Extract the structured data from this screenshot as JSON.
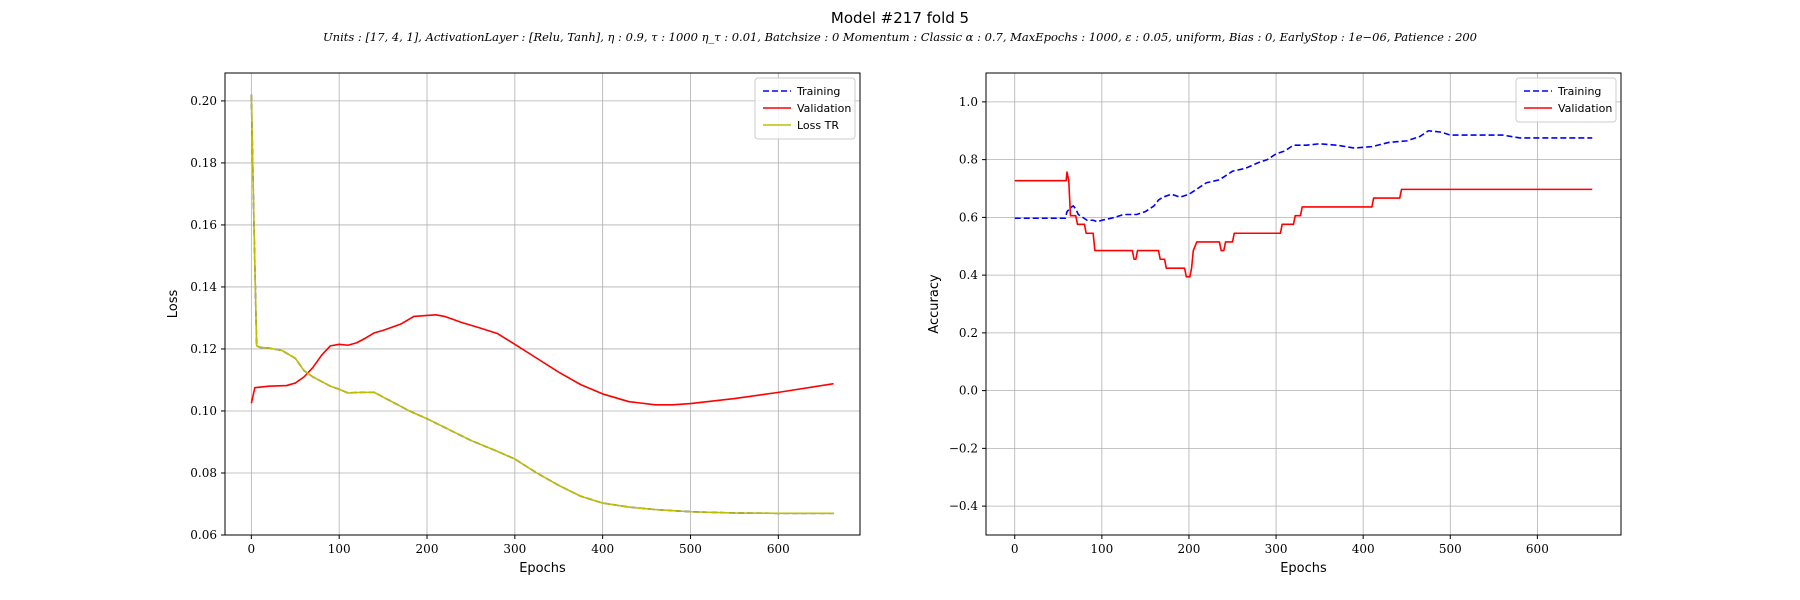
{
  "figure": {
    "title": "Model #217 fold 5",
    "subtitle": "Units : [17, 4, 1], ActivationLayer : [Relu, Tanh], η : 0.9, τ : 1000 η_τ : 0.01, Batchsize : 0 Momentum : Classic α : 0.7, MaxEpochs : 1000, ε : 0.05, uniform, Bias : 0, EarlyStop : 1e−06, Patience : 200"
  },
  "chart_data": [
    {
      "type": "line",
      "xlabel": "Epochs",
      "ylabel": "Loss",
      "xlim": [
        -30,
        693
      ],
      "ylim": [
        0.06,
        0.209
      ],
      "xticks": [
        0,
        100,
        200,
        300,
        400,
        500,
        600
      ],
      "yticks": [
        0.06,
        0.08,
        0.1,
        0.12,
        0.14,
        0.16,
        0.18,
        0.2
      ],
      "ytick_labels": [
        "0.06",
        "0.08",
        "0.10",
        "0.12",
        "0.14",
        "0.16",
        "0.18",
        "0.20"
      ],
      "grid": true,
      "legend": "top-right",
      "series": [
        {
          "name": "Training",
          "color": "#0000ff",
          "dash": "dashed",
          "points": [
            [
              0,
              0.202
            ],
            [
              3,
              0.16
            ],
            [
              6,
              0.121
            ],
            [
              10,
              0.1205
            ],
            [
              20,
              0.1203
            ],
            [
              35,
              0.1195
            ],
            [
              50,
              0.117
            ],
            [
              60,
              0.113
            ],
            [
              70,
              0.111
            ],
            [
              80,
              0.1095
            ],
            [
              90,
              0.108
            ],
            [
              100,
              0.107
            ],
            [
              110,
              0.1058
            ],
            [
              125,
              0.106
            ],
            [
              140,
              0.106
            ],
            [
              160,
              0.103
            ],
            [
              180,
              0.1
            ],
            [
              200,
              0.0975
            ],
            [
              225,
              0.094
            ],
            [
              250,
              0.0905
            ],
            [
              280,
              0.087
            ],
            [
              300,
              0.0845
            ],
            [
              325,
              0.08
            ],
            [
              350,
              0.076
            ],
            [
              375,
              0.0725
            ],
            [
              400,
              0.0703
            ],
            [
              430,
              0.069
            ],
            [
              460,
              0.0682
            ],
            [
              500,
              0.0675
            ],
            [
              550,
              0.0671
            ],
            [
              600,
              0.067
            ],
            [
              663,
              0.067
            ]
          ]
        },
        {
          "name": "Validation",
          "color": "#ff0000",
          "dash": "solid",
          "points": [
            [
              0,
              0.1025
            ],
            [
              4,
              0.1075
            ],
            [
              20,
              0.108
            ],
            [
              40,
              0.1082
            ],
            [
              50,
              0.109
            ],
            [
              60,
              0.111
            ],
            [
              70,
              0.114
            ],
            [
              80,
              0.118
            ],
            [
              90,
              0.121
            ],
            [
              100,
              0.1215
            ],
            [
              110,
              0.1212
            ],
            [
              120,
              0.122
            ],
            [
              130,
              0.1235
            ],
            [
              140,
              0.1252
            ],
            [
              150,
              0.126
            ],
            [
              170,
              0.128
            ],
            [
              185,
              0.1305
            ],
            [
              200,
              0.1308
            ],
            [
              210,
              0.131
            ],
            [
              220,
              0.1305
            ],
            [
              240,
              0.1285
            ],
            [
              260,
              0.1268
            ],
            [
              280,
              0.125
            ],
            [
              300,
              0.1215
            ],
            [
              325,
              0.117
            ],
            [
              350,
              0.1125
            ],
            [
              375,
              0.1085
            ],
            [
              400,
              0.1055
            ],
            [
              430,
              0.103
            ],
            [
              460,
              0.102
            ],
            [
              480,
              0.102
            ],
            [
              500,
              0.1024
            ],
            [
              550,
              0.104
            ],
            [
              600,
              0.106
            ],
            [
              663,
              0.1088
            ]
          ]
        },
        {
          "name": "Loss TR",
          "color": "#bfbf00",
          "dash": "solid",
          "points": [
            [
              0,
              0.202
            ],
            [
              3,
              0.16
            ],
            [
              6,
              0.121
            ],
            [
              10,
              0.1205
            ],
            [
              20,
              0.1203
            ],
            [
              35,
              0.1195
            ],
            [
              50,
              0.117
            ],
            [
              60,
              0.113
            ],
            [
              70,
              0.111
            ],
            [
              80,
              0.1095
            ],
            [
              90,
              0.108
            ],
            [
              100,
              0.107
            ],
            [
              110,
              0.1058
            ],
            [
              125,
              0.106
            ],
            [
              140,
              0.106
            ],
            [
              160,
              0.103
            ],
            [
              180,
              0.1
            ],
            [
              200,
              0.0975
            ],
            [
              225,
              0.094
            ],
            [
              250,
              0.0905
            ],
            [
              280,
              0.087
            ],
            [
              300,
              0.0845
            ],
            [
              325,
              0.08
            ],
            [
              350,
              0.076
            ],
            [
              375,
              0.0725
            ],
            [
              400,
              0.0703
            ],
            [
              430,
              0.069
            ],
            [
              460,
              0.0682
            ],
            [
              500,
              0.0675
            ],
            [
              550,
              0.0671
            ],
            [
              600,
              0.067
            ],
            [
              663,
              0.067
            ]
          ]
        }
      ]
    },
    {
      "type": "line",
      "xlabel": "Epochs",
      "ylabel": "Accuracy",
      "xlim": [
        -33,
        696
      ],
      "ylim": [
        -0.5,
        1.1
      ],
      "xticks": [
        0,
        100,
        200,
        300,
        400,
        500,
        600
      ],
      "yticks": [
        -0.4,
        -0.2,
        0.0,
        0.2,
        0.4,
        0.6,
        0.8,
        1.0
      ],
      "ytick_labels": [
        "−0.4",
        "−0.2",
        "0.0",
        "0.2",
        "0.4",
        "0.6",
        "0.8",
        "1.0"
      ],
      "grid": true,
      "legend": "top-right",
      "series": [
        {
          "name": "Training",
          "color": "#0000ff",
          "dash": "dashed",
          "points": [
            [
              0,
              0.597
            ],
            [
              58,
              0.597
            ],
            [
              60,
              0.62
            ],
            [
              63,
              0.63
            ],
            [
              67,
              0.64
            ],
            [
              70,
              0.63
            ],
            [
              73,
              0.61
            ],
            [
              78,
              0.6
            ],
            [
              83,
              0.59
            ],
            [
              90,
              0.59
            ],
            [
              95,
              0.585
            ],
            [
              100,
              0.59
            ],
            [
              115,
              0.6
            ],
            [
              125,
              0.61
            ],
            [
              140,
              0.61
            ],
            [
              150,
              0.62
            ],
            [
              160,
              0.64
            ],
            [
              165,
              0.66
            ],
            [
              170,
              0.67
            ],
            [
              180,
              0.68
            ],
            [
              190,
              0.67
            ],
            [
              200,
              0.68
            ],
            [
              210,
              0.7
            ],
            [
              220,
              0.72
            ],
            [
              235,
              0.73
            ],
            [
              250,
              0.76
            ],
            [
              265,
              0.77
            ],
            [
              280,
              0.79
            ],
            [
              290,
              0.8
            ],
            [
              300,
              0.82
            ],
            [
              310,
              0.83
            ],
            [
              320,
              0.85
            ],
            [
              335,
              0.85
            ],
            [
              350,
              0.855
            ],
            [
              370,
              0.85
            ],
            [
              390,
              0.84
            ],
            [
              410,
              0.845
            ],
            [
              430,
              0.86
            ],
            [
              450,
              0.865
            ],
            [
              465,
              0.88
            ],
            [
              475,
              0.9
            ],
            [
              490,
              0.895
            ],
            [
              500,
              0.885
            ],
            [
              560,
              0.885
            ],
            [
              580,
              0.875
            ],
            [
              663,
              0.875
            ]
          ]
        },
        {
          "name": "Validation",
          "color": "#ff0000",
          "dash": "solid",
          "points": [
            [
              0,
              0.727
            ],
            [
              59,
              0.727
            ],
            [
              60,
              0.757
            ],
            [
              62,
              0.727
            ],
            [
              64,
              0.606
            ],
            [
              70,
              0.606
            ],
            [
              72,
              0.576
            ],
            [
              80,
              0.576
            ],
            [
              82,
              0.545
            ],
            [
              90,
              0.545
            ],
            [
              92,
              0.485
            ],
            [
              135,
              0.485
            ],
            [
              137,
              0.455
            ],
            [
              139,
              0.455
            ],
            [
              141,
              0.485
            ],
            [
              165,
              0.485
            ],
            [
              167,
              0.455
            ],
            [
              172,
              0.455
            ],
            [
              174,
              0.424
            ],
            [
              195,
              0.424
            ],
            [
              197,
              0.394
            ],
            [
              201,
              0.394
            ],
            [
              203,
              0.424
            ],
            [
              205,
              0.485
            ],
            [
              209,
              0.515
            ],
            [
              235,
              0.515
            ],
            [
              237,
              0.485
            ],
            [
              240,
              0.485
            ],
            [
              242,
              0.515
            ],
            [
              250,
              0.515
            ],
            [
              252,
              0.545
            ],
            [
              305,
              0.545
            ],
            [
              307,
              0.576
            ],
            [
              320,
              0.576
            ],
            [
              322,
              0.606
            ],
            [
              328,
              0.606
            ],
            [
              330,
              0.636
            ],
            [
              410,
              0.636
            ],
            [
              412,
              0.667
            ],
            [
              442,
              0.667
            ],
            [
              444,
              0.697
            ],
            [
              663,
              0.697
            ]
          ]
        }
      ]
    }
  ]
}
